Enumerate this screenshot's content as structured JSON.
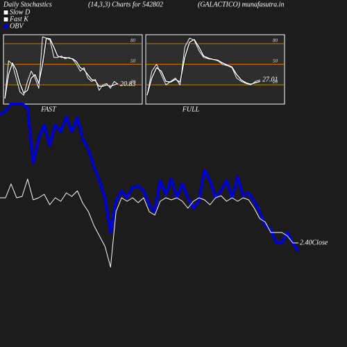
{
  "header": [
    "Daily Stochastics",
    "(14,3,3) Charts for 542802",
    "(GALACTICO) munafasutra.in"
  ],
  "legend": [
    {
      "name": "Slow  D",
      "color": "#ffffff"
    },
    {
      "name": "Fast  K",
      "color": "#ffffff"
    },
    {
      "name": "OBV",
      "color": "#0000cc"
    }
  ],
  "chart_data": [
    {
      "type": "line",
      "title": "FAST",
      "ylim": [
        -8,
        93
      ],
      "yticks": [
        20,
        50,
        80
      ],
      "grid": true,
      "grid_color": "#cc7a00",
      "series": [
        {
          "color": "#ffffff",
          "values": [
            0,
            35,
            52,
            42,
            22,
            8,
            12,
            30,
            35,
            22,
            50,
            88,
            87,
            75,
            62,
            60,
            60,
            59,
            58,
            54,
            45,
            42,
            35,
            28,
            26,
            18,
            18,
            20,
            18,
            20,
            22
          ]
        },
        {
          "color": "#ffffff",
          "values": [
            0,
            55,
            50,
            30,
            10,
            5,
            25,
            40,
            30,
            15,
            90,
            88,
            85,
            60,
            60,
            62,
            58,
            60,
            57,
            50,
            40,
            45,
            30,
            25,
            28,
            12,
            20,
            22,
            15,
            25,
            20.83
          ]
        }
      ]
    },
    {
      "type": "line",
      "title": "FULL",
      "ylim": [
        -8,
        93
      ],
      "yticks": [
        20,
        50,
        80
      ],
      "grid": true,
      "grid_color": "#cc7a00",
      "series": [
        {
          "color": "#ffffff",
          "values": [
            5,
            30,
            45,
            40,
            25,
            24,
            28,
            24,
            60,
            82,
            86,
            75,
            62,
            59,
            57,
            56,
            52,
            49,
            46,
            35,
            27,
            23,
            21,
            23,
            25
          ]
        },
        {
          "color": "#ffffff",
          "values": [
            5,
            40,
            50,
            35,
            20,
            25,
            30,
            20,
            75,
            88,
            85,
            70,
            60,
            58,
            57,
            55,
            50,
            48,
            45,
            30,
            25,
            22,
            20,
            25,
            27.01
          ]
        }
      ]
    },
    {
      "type": "line",
      "series": [
        {
          "color": "#0000cc",
          "values": [
            335,
            340,
            350,
            350,
            350,
            345,
            265,
            300,
            320,
            290,
            320,
            310,
            332,
            310,
            330,
            300,
            285,
            260,
            240,
            215,
            165,
            210,
            225,
            215,
            230,
            232,
            225,
            205,
            195,
            240,
            220,
            242,
            215,
            235,
            215,
            200,
            210,
            255,
            240,
            215,
            225,
            240,
            215,
            245,
            218,
            222,
            210,
            195,
            175,
            170,
            150,
            150,
            165,
            150,
            138
          ]
        },
        {
          "color": "#ffffff",
          "values": [
            2.53,
            2.53,
            2.57,
            2.53,
            2.534,
            2.584,
            2.524,
            2.53,
            2.54,
            2.51,
            2.53,
            2.52,
            2.544,
            2.534,
            2.55,
            2.514,
            2.49,
            2.45,
            2.42,
            2.39,
            2.33,
            2.49,
            2.53,
            2.52,
            2.53,
            2.516,
            2.53,
            2.49,
            2.48,
            2.52,
            2.53,
            2.524,
            2.53,
            2.52,
            2.5,
            2.52,
            2.53,
            2.524,
            2.51,
            2.53,
            2.536,
            2.52,
            2.53,
            2.52,
            2.53,
            2.524,
            2.5,
            2.47,
            2.46,
            2.43,
            2.43,
            2.43,
            2.42,
            2.4,
            2.4
          ],
          "value_labels": [
            null,
            null,
            null,
            null,
            null,
            null,
            null,
            null,
            null,
            null,
            null,
            null,
            null,
            null,
            null,
            null,
            null,
            null,
            null,
            null,
            null,
            null,
            null,
            null,
            null,
            null,
            null,
            null,
            null,
            null,
            null,
            null,
            null,
            null,
            null,
            null,
            null,
            null,
            null,
            null,
            null,
            null,
            null,
            null,
            null,
            null,
            null,
            null,
            null,
            null,
            null,
            null,
            null,
            null,
            "2.40Close"
          ]
        }
      ]
    }
  ]
}
